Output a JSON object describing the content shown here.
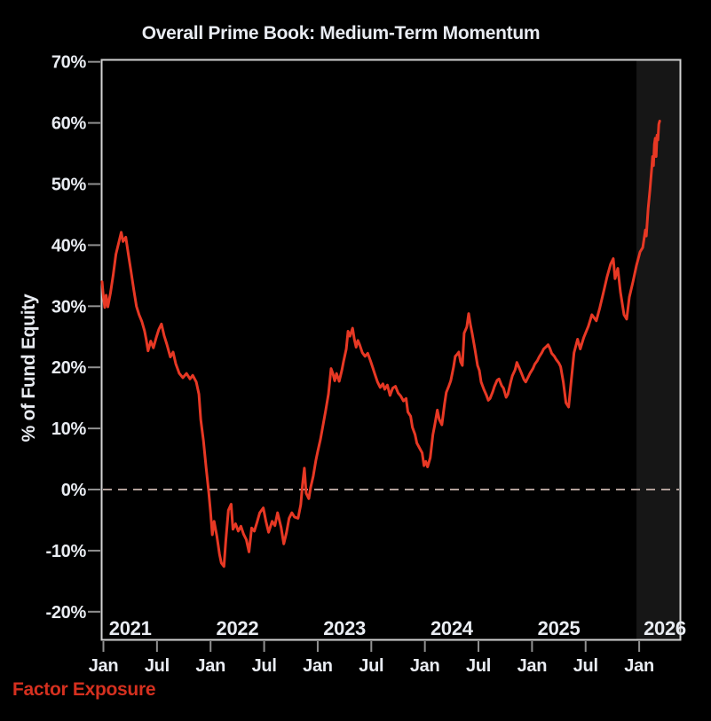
{
  "footer": {
    "label": "Factor Exposure"
  },
  "colors": {
    "background": "#000000",
    "line": "#e73824",
    "footer_text": "#d5301f",
    "plot_border": "#d2d2d2",
    "tick": "#909090",
    "zero_dash": "#b2a09a",
    "highlight_band": "#161616",
    "text": "#e9ecf2"
  },
  "chart_data": {
    "type": "line",
    "title": "Overall Prime Book: Medium-Term Momentum",
    "xlabel": "",
    "ylabel": "% of Fund Equity",
    "ylim": [
      -24.7,
      70.4
    ],
    "xlim_months": [
      -0.25,
      64.7
    ],
    "grid": false,
    "legend": "none",
    "y_ticks": [
      {
        "value": 70,
        "label": "70%"
      },
      {
        "value": 60,
        "label": "60%"
      },
      {
        "value": 50,
        "label": "50%"
      },
      {
        "value": 40,
        "label": "40%"
      },
      {
        "value": 30,
        "label": "30%"
      },
      {
        "value": 20,
        "label": "20%"
      },
      {
        "value": 10,
        "label": "10%"
      },
      {
        "value": 0,
        "label": "0%"
      },
      {
        "value": -10,
        "label": "-10%"
      },
      {
        "value": -20,
        "label": "-20%"
      }
    ],
    "x_ticks": [
      {
        "month": 0,
        "label": "Jan"
      },
      {
        "month": 6,
        "label": "Jul"
      },
      {
        "month": 12,
        "label": "Jan"
      },
      {
        "month": 18,
        "label": "Jul"
      },
      {
        "month": 24,
        "label": "Jan"
      },
      {
        "month": 30,
        "label": "Jul"
      },
      {
        "month": 36,
        "label": "Jan"
      },
      {
        "month": 42,
        "label": "Jul"
      },
      {
        "month": 48,
        "label": "Jan"
      },
      {
        "month": 54,
        "label": "Jul"
      },
      {
        "month": 60,
        "label": "Jan"
      }
    ],
    "year_labels": [
      {
        "month": 3,
        "label": "2021"
      },
      {
        "month": 15,
        "label": "2022"
      },
      {
        "month": 27,
        "label": "2023"
      },
      {
        "month": 39,
        "label": "2024"
      },
      {
        "month": 51,
        "label": "2025"
      },
      {
        "month": 63,
        "label": "2026"
      }
    ],
    "zero_line": {
      "value": 0,
      "style": "dashed"
    },
    "highlight_band": {
      "start_month": 59.7,
      "end_month": 64.7
    },
    "series": [
      {
        "name": "Medium-Term Momentum exposure",
        "unit": "% of fund equity",
        "x_unit": "months since Jan 2021",
        "points": [
          [
            -0.15,
            34.0
          ],
          [
            0.0,
            31.5
          ],
          [
            0.15,
            29.8
          ],
          [
            0.3,
            31.8
          ],
          [
            0.5,
            29.9
          ],
          [
            0.8,
            32.2
          ],
          [
            1.1,
            35.2
          ],
          [
            1.4,
            38.5
          ],
          [
            1.7,
            40.3
          ],
          [
            2.0,
            42.1
          ],
          [
            2.2,
            40.6
          ],
          [
            2.5,
            41.3
          ],
          [
            2.8,
            38.4
          ],
          [
            3.1,
            35.6
          ],
          [
            3.4,
            32.7
          ],
          [
            3.7,
            30.0
          ],
          [
            4.0,
            28.6
          ],
          [
            4.3,
            27.5
          ],
          [
            4.6,
            26.0
          ],
          [
            4.8,
            24.5
          ],
          [
            5.0,
            22.7
          ],
          [
            5.3,
            24.3
          ],
          [
            5.6,
            23.2
          ],
          [
            5.9,
            24.8
          ],
          [
            6.2,
            26.2
          ],
          [
            6.5,
            27.1
          ],
          [
            6.8,
            25.2
          ],
          [
            7.1,
            23.8
          ],
          [
            7.5,
            21.7
          ],
          [
            7.8,
            22.5
          ],
          [
            8.1,
            20.6
          ],
          [
            8.5,
            19.0
          ],
          [
            8.9,
            18.3
          ],
          [
            9.3,
            19.0
          ],
          [
            9.7,
            18.1
          ],
          [
            10.0,
            18.7
          ],
          [
            10.4,
            17.6
          ],
          [
            10.7,
            15.6
          ],
          [
            10.9,
            11.4
          ],
          [
            11.2,
            8.0
          ],
          [
            11.5,
            3.6
          ],
          [
            11.8,
            -0.5
          ],
          [
            12.0,
            -3.7
          ],
          [
            12.2,
            -7.4
          ],
          [
            12.4,
            -5.2
          ],
          [
            12.7,
            -7.6
          ],
          [
            13.0,
            -10.6
          ],
          [
            13.2,
            -12.0
          ],
          [
            13.5,
            -12.6
          ],
          [
            13.7,
            -8.5
          ],
          [
            14.0,
            -3.4
          ],
          [
            14.3,
            -2.4
          ],
          [
            14.5,
            -6.5
          ],
          [
            14.8,
            -5.6
          ],
          [
            15.1,
            -6.8
          ],
          [
            15.4,
            -6.0
          ],
          [
            15.7,
            -7.3
          ],
          [
            16.0,
            -8.2
          ],
          [
            16.3,
            -10.2
          ],
          [
            16.6,
            -6.3
          ],
          [
            16.9,
            -6.8
          ],
          [
            17.2,
            -5.4
          ],
          [
            17.5,
            -3.8
          ],
          [
            17.9,
            -3.0
          ],
          [
            18.2,
            -5.2
          ],
          [
            18.5,
            -7.0
          ],
          [
            18.9,
            -5.2
          ],
          [
            19.2,
            -5.9
          ],
          [
            19.5,
            -3.8
          ],
          [
            19.9,
            -6.2
          ],
          [
            20.2,
            -8.9
          ],
          [
            20.5,
            -7.1
          ],
          [
            20.8,
            -4.7
          ],
          [
            21.1,
            -3.8
          ],
          [
            21.4,
            -4.5
          ],
          [
            21.8,
            -4.7
          ],
          [
            22.1,
            -2.5
          ],
          [
            22.3,
            0.8
          ],
          [
            22.5,
            3.5
          ],
          [
            22.7,
            -0.6
          ],
          [
            23.0,
            -1.5
          ],
          [
            23.2,
            0.3
          ],
          [
            23.5,
            2.2
          ],
          [
            23.8,
            4.8
          ],
          [
            24.0,
            6.2
          ],
          [
            24.3,
            8.2
          ],
          [
            24.6,
            10.6
          ],
          [
            24.9,
            13.0
          ],
          [
            25.2,
            15.6
          ],
          [
            25.5,
            19.8
          ],
          [
            25.7,
            19.0
          ],
          [
            25.9,
            17.8
          ],
          [
            26.1,
            19.0
          ],
          [
            26.4,
            17.7
          ],
          [
            26.7,
            19.5
          ],
          [
            26.9,
            21.0
          ],
          [
            27.2,
            23.0
          ],
          [
            27.4,
            25.9
          ],
          [
            27.6,
            25.1
          ],
          [
            27.9,
            26.4
          ],
          [
            28.1,
            24.6
          ],
          [
            28.3,
            23.3
          ],
          [
            28.5,
            24.4
          ],
          [
            28.7,
            23.7
          ],
          [
            29.0,
            22.4
          ],
          [
            29.3,
            21.8
          ],
          [
            29.6,
            22.3
          ],
          [
            29.9,
            21.1
          ],
          [
            30.2,
            19.8
          ],
          [
            30.4,
            18.9
          ],
          [
            30.7,
            17.6
          ],
          [
            31.0,
            16.7
          ],
          [
            31.3,
            17.3
          ],
          [
            31.5,
            16.4
          ],
          [
            31.8,
            17.1
          ],
          [
            32.1,
            15.4
          ],
          [
            32.4,
            16.6
          ],
          [
            32.7,
            16.9
          ],
          [
            33.0,
            15.8
          ],
          [
            33.3,
            15.3
          ],
          [
            33.6,
            14.5
          ],
          [
            33.9,
            14.9
          ],
          [
            34.1,
            12.7
          ],
          [
            34.4,
            12.0
          ],
          [
            34.6,
            10.2
          ],
          [
            34.9,
            9.0
          ],
          [
            35.1,
            7.6
          ],
          [
            35.4,
            6.8
          ],
          [
            35.7,
            6.0
          ],
          [
            35.9,
            3.9
          ],
          [
            36.1,
            4.6
          ],
          [
            36.3,
            3.7
          ],
          [
            36.6,
            5.2
          ],
          [
            36.9,
            9.0
          ],
          [
            37.1,
            10.5
          ],
          [
            37.4,
            13.0
          ],
          [
            37.6,
            11.5
          ],
          [
            37.9,
            10.6
          ],
          [
            38.2,
            14.0
          ],
          [
            38.4,
            15.9
          ],
          [
            38.7,
            17.0
          ],
          [
            38.9,
            17.8
          ],
          [
            39.2,
            20.0
          ],
          [
            39.4,
            21.8
          ],
          [
            39.6,
            22.1
          ],
          [
            39.8,
            22.5
          ],
          [
            40.0,
            20.9
          ],
          [
            40.2,
            20.3
          ],
          [
            40.4,
            25.6
          ],
          [
            40.7,
            26.6
          ],
          [
            40.9,
            28.8
          ],
          [
            41.1,
            27.0
          ],
          [
            41.3,
            25.5
          ],
          [
            41.6,
            23.0
          ],
          [
            41.9,
            20.3
          ],
          [
            42.1,
            19.5
          ],
          [
            42.3,
            17.6
          ],
          [
            42.6,
            16.4
          ],
          [
            42.9,
            15.4
          ],
          [
            43.1,
            14.6
          ],
          [
            43.3,
            14.9
          ],
          [
            43.6,
            16.0
          ],
          [
            43.8,
            16.9
          ],
          [
            44.1,
            17.9
          ],
          [
            44.3,
            18.1
          ],
          [
            44.6,
            17.0
          ],
          [
            44.8,
            16.6
          ],
          [
            45.1,
            15.1
          ],
          [
            45.3,
            15.6
          ],
          [
            45.6,
            17.5
          ],
          [
            45.8,
            18.6
          ],
          [
            46.1,
            19.6
          ],
          [
            46.3,
            20.8
          ],
          [
            46.6,
            19.8
          ],
          [
            46.8,
            19.1
          ],
          [
            47.1,
            18.0
          ],
          [
            47.3,
            17.6
          ],
          [
            47.6,
            18.5
          ],
          [
            47.8,
            19.1
          ],
          [
            48.1,
            19.8
          ],
          [
            48.3,
            20.5
          ],
          [
            48.6,
            21.1
          ],
          [
            48.8,
            21.7
          ],
          [
            49.1,
            22.4
          ],
          [
            49.3,
            23.0
          ],
          [
            49.6,
            23.4
          ],
          [
            49.8,
            23.7
          ],
          [
            50.0,
            23.1
          ],
          [
            50.2,
            22.3
          ],
          [
            50.5,
            21.8
          ],
          [
            50.7,
            21.3
          ],
          [
            51.0,
            20.7
          ],
          [
            51.2,
            20.1
          ],
          [
            51.5,
            17.6
          ],
          [
            51.8,
            14.2
          ],
          [
            52.1,
            13.5
          ],
          [
            52.4,
            17.9
          ],
          [
            52.7,
            22.4
          ],
          [
            53.1,
            24.6
          ],
          [
            53.4,
            23.0
          ],
          [
            53.8,
            24.9
          ],
          [
            54.3,
            26.7
          ],
          [
            54.7,
            28.6
          ],
          [
            55.2,
            27.6
          ],
          [
            55.6,
            29.8
          ],
          [
            56.0,
            32.3
          ],
          [
            56.4,
            34.8
          ],
          [
            56.8,
            36.9
          ],
          [
            57.1,
            37.8
          ],
          [
            57.3,
            34.5
          ],
          [
            57.6,
            36.2
          ],
          [
            57.9,
            32.3
          ],
          [
            58.3,
            28.6
          ],
          [
            58.6,
            27.9
          ],
          [
            58.9,
            31.5
          ],
          [
            59.3,
            34.0
          ],
          [
            59.7,
            36.7
          ],
          [
            60.1,
            38.9
          ],
          [
            60.4,
            39.6
          ],
          [
            60.7,
            42.5
          ],
          [
            60.8,
            41.5
          ],
          [
            61.0,
            46.0
          ],
          [
            61.2,
            49.0
          ],
          [
            61.4,
            52.5
          ],
          [
            61.5,
            54.5
          ],
          [
            61.6,
            53.0
          ],
          [
            61.7,
            56.5
          ],
          [
            61.8,
            57.5
          ],
          [
            61.9,
            54.5
          ],
          [
            62.0,
            58.0
          ],
          [
            62.1,
            57.2
          ],
          [
            62.2,
            59.8
          ],
          [
            62.3,
            60.3
          ]
        ]
      }
    ]
  }
}
